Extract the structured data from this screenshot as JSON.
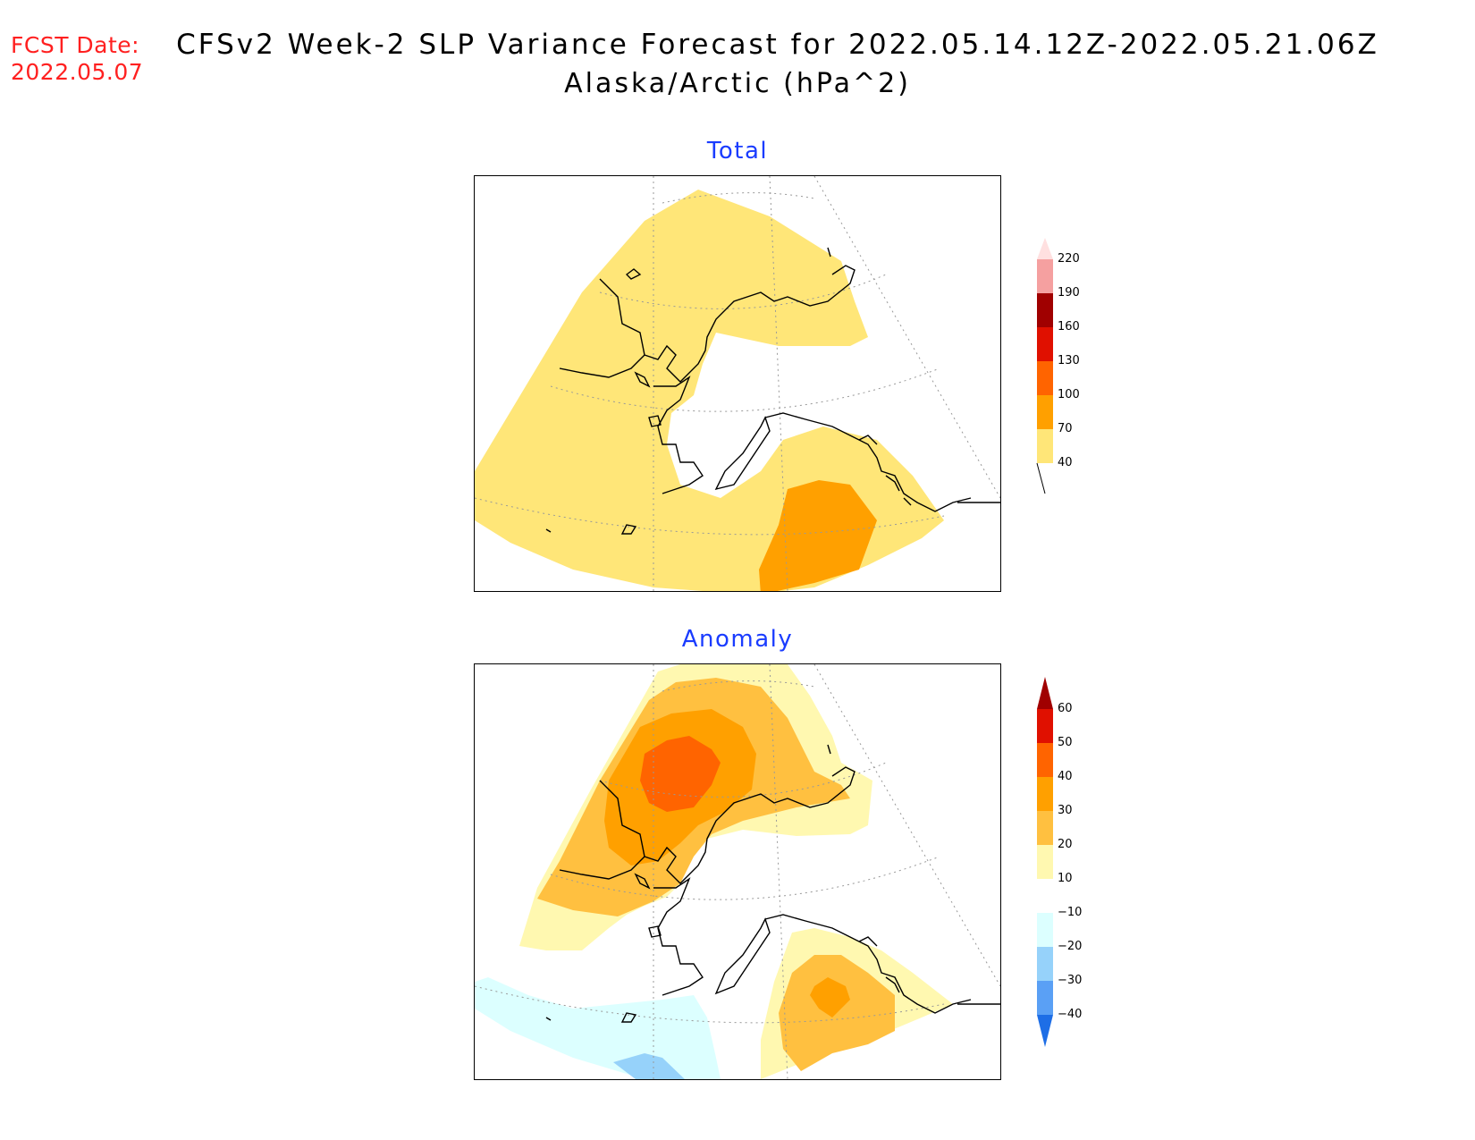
{
  "header": {
    "fcst_label_line1": "FCST Date:",
    "fcst_label_line2": "2022.05.07",
    "title_line1": "CFSv2 Week-2 SLP Variance Forecast for 2022.05.14.12Z-2022.05.21.06Z",
    "title_line2": "Alaska/Arctic (hPa^2)"
  },
  "panels": {
    "total": {
      "title": "Total"
    },
    "anomaly": {
      "title": "Anomaly"
    }
  },
  "colorbars": {
    "total": {
      "labels": [
        "220",
        "190",
        "160",
        "130",
        "100",
        "70",
        "40"
      ],
      "colors": [
        "#ffe0e0",
        "#f5a0a0",
        "#a00000",
        "#e01000",
        "#ff6400",
        "#ffa000",
        "#ffe678"
      ]
    },
    "anomaly": {
      "labels": [
        "60",
        "50",
        "40",
        "30",
        "20",
        "10",
        "−10",
        "−20",
        "−30",
        "−40"
      ],
      "colors_pos": [
        "#a00000",
        "#e01000",
        "#ff6400",
        "#ffa000",
        "#ffc040",
        "#fff8b0"
      ],
      "colors_neg": [
        "#dcffff",
        "#96d2fa",
        "#5aa0f5",
        "#1e6ee6"
      ]
    }
  },
  "map_colors": {
    "c40": "#ffe678",
    "c70": "#ffa000",
    "a10": "#fff8b0",
    "a20": "#ffc040",
    "a30": "#ffa000",
    "a40": "#ff6400",
    "n10": "#dcffff",
    "n20": "#96d2fa"
  }
}
